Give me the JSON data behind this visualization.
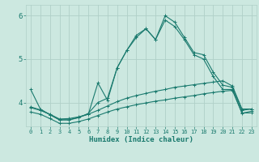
{
  "xlabel": "Humidex (Indice chaleur)",
  "ylabel": "",
  "bg_color": "#cce8e0",
  "grid_color": "#b0d0c8",
  "line_color": "#1a7a6e",
  "tick_color": "#1a7a6e",
  "xlim": [
    -0.5,
    23.5
  ],
  "ylim": [
    3.45,
    6.25
  ],
  "yticks": [
    4,
    5,
    6
  ],
  "xticks": [
    0,
    1,
    2,
    3,
    4,
    5,
    6,
    7,
    8,
    9,
    10,
    11,
    12,
    13,
    14,
    15,
    16,
    17,
    18,
    19,
    20,
    21,
    22,
    23
  ],
  "lines": [
    {
      "x": [
        0,
        1,
        2,
        3,
        4,
        5,
        6,
        7,
        8,
        9,
        10,
        11,
        12,
        13,
        14,
        15,
        16,
        17,
        18,
        19,
        20,
        21,
        22,
        23
      ],
      "y": [
        4.3,
        3.85,
        3.72,
        3.6,
        3.6,
        3.65,
        3.75,
        4.0,
        4.1,
        4.8,
        5.2,
        5.5,
        5.7,
        5.45,
        6.0,
        5.85,
        5.5,
        5.15,
        5.1,
        4.7,
        4.4,
        4.35,
        3.82,
        3.85
      ]
    },
    {
      "x": [
        0,
        1,
        2,
        3,
        4,
        5,
        6,
        7,
        8,
        9,
        10,
        11,
        12,
        13,
        14,
        15,
        16,
        17,
        18,
        19,
        20,
        21,
        22,
        23
      ],
      "y": [
        3.9,
        3.83,
        3.72,
        3.6,
        3.6,
        3.66,
        3.73,
        4.45,
        4.05,
        4.8,
        5.2,
        5.55,
        5.7,
        5.45,
        5.9,
        5.75,
        5.45,
        5.1,
        5.0,
        4.6,
        4.3,
        4.3,
        3.75,
        3.8
      ]
    },
    {
      "x": [
        0,
        1,
        2,
        3,
        4,
        5,
        6,
        7,
        8,
        9,
        10,
        11,
        12,
        13,
        14,
        15,
        16,
        17,
        18,
        19,
        20,
        21,
        22,
        23
      ],
      "y": [
        3.88,
        3.82,
        3.73,
        3.62,
        3.63,
        3.67,
        3.73,
        3.82,
        3.92,
        4.02,
        4.1,
        4.16,
        4.21,
        4.26,
        4.3,
        4.35,
        4.38,
        4.41,
        4.44,
        4.47,
        4.5,
        4.38,
        3.85,
        3.85
      ]
    },
    {
      "x": [
        0,
        1,
        2,
        3,
        4,
        5,
        6,
        7,
        8,
        9,
        10,
        11,
        12,
        13,
        14,
        15,
        16,
        17,
        18,
        19,
        20,
        21,
        22,
        23
      ],
      "y": [
        3.78,
        3.73,
        3.63,
        3.52,
        3.52,
        3.56,
        3.62,
        3.7,
        3.78,
        3.85,
        3.9,
        3.95,
        3.99,
        4.03,
        4.06,
        4.1,
        4.13,
        4.16,
        4.2,
        4.23,
        4.26,
        4.28,
        3.76,
        3.76
      ]
    }
  ]
}
